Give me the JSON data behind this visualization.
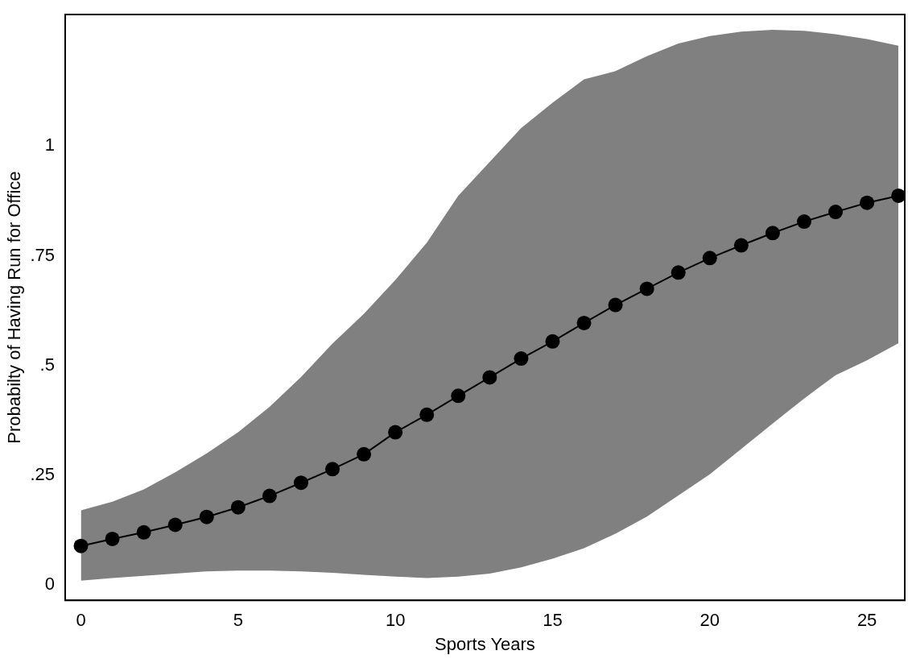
{
  "chart_data": {
    "type": "line",
    "xlabel": "Sports Years",
    "ylabel": "Probabilty of Having Run for Office",
    "x": [
      0,
      1,
      2,
      3,
      4,
      5,
      6,
      7,
      8,
      9,
      10,
      11,
      12,
      13,
      14,
      15,
      16,
      17,
      18,
      19,
      20,
      21,
      22,
      23,
      24,
      25,
      26
    ],
    "series": [
      {
        "color": "#000000",
        "values": [
          0.089,
          0.105,
          0.12,
          0.137,
          0.155,
          0.177,
          0.203,
          0.233,
          0.264,
          0.298,
          0.348,
          0.388,
          0.431,
          0.473,
          0.516,
          0.555,
          0.597,
          0.638,
          0.675,
          0.712,
          0.745,
          0.774,
          0.802,
          0.828,
          0.85,
          0.871,
          0.887
        ],
        "lower": [
          0.01,
          0.016,
          0.021,
          0.026,
          0.031,
          0.033,
          0.033,
          0.031,
          0.028,
          0.023,
          0.019,
          0.016,
          0.019,
          0.026,
          0.04,
          0.06,
          0.084,
          0.117,
          0.156,
          0.204,
          0.252,
          0.31,
          0.368,
          0.425,
          0.478,
          0.512,
          0.551
        ],
        "upper": [
          0.17,
          0.19,
          0.218,
          0.257,
          0.3,
          0.348,
          0.406,
          0.474,
          0.55,
          0.618,
          0.695,
          0.78,
          0.887,
          0.964,
          1.041,
          1.099,
          1.152,
          1.171,
          1.205,
          1.234,
          1.251,
          1.261,
          1.265,
          1.263,
          1.255,
          1.244,
          1.229
        ]
      }
    ],
    "xlim": [
      -0.5,
      26.2
    ],
    "xticks": [
      0,
      5,
      10,
      15,
      20,
      25
    ],
    "ylim": [
      -0.035,
      1.3
    ],
    "yticks": [
      0,
      {
        "value": 0.25,
        "label": ".25"
      },
      {
        "value": 0.5,
        "label": ".5"
      },
      {
        "value": 0.75,
        "label": ".75"
      },
      1
    ],
    "grid": false,
    "legend": false,
    "marker": "circle",
    "line_style": "solid"
  }
}
